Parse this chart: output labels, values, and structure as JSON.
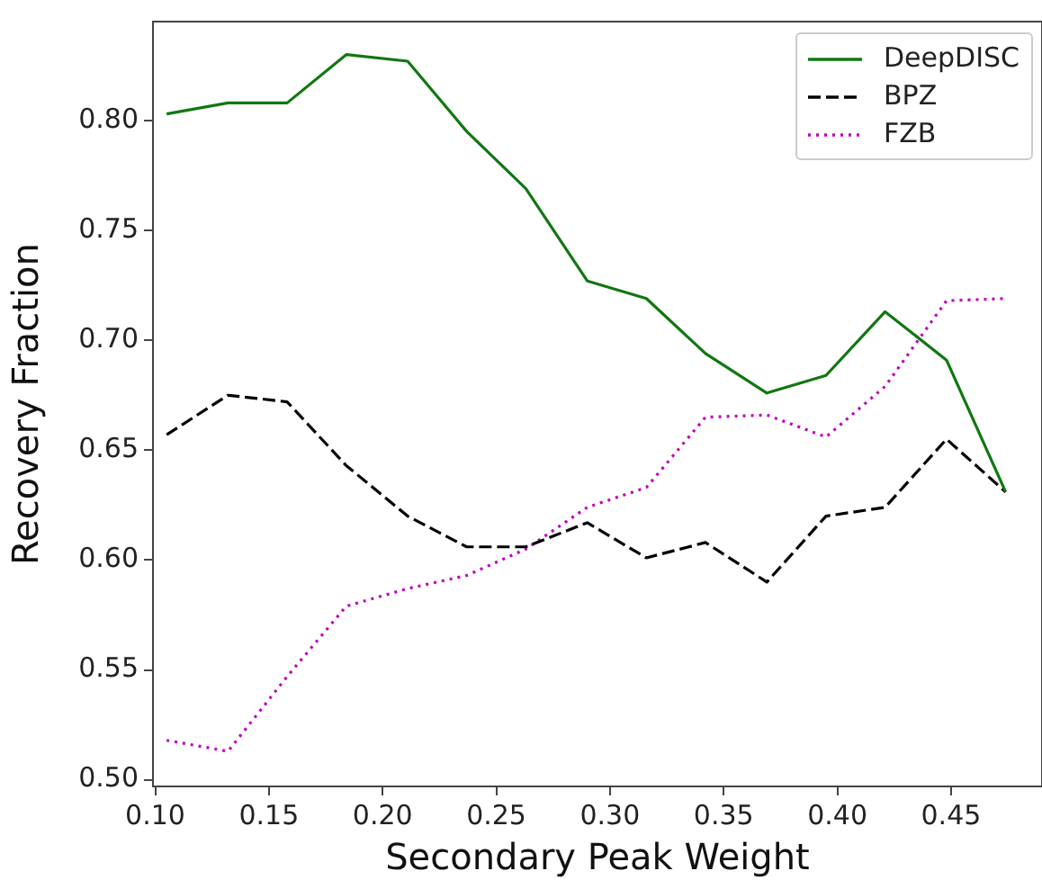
{
  "chart_data": {
    "type": "line",
    "xlabel": "Secondary Peak Weight",
    "ylabel": "Recovery Fraction",
    "x": [
      0.105,
      0.132,
      0.158,
      0.184,
      0.211,
      0.237,
      0.263,
      0.29,
      0.316,
      0.342,
      0.369,
      0.395,
      0.421,
      0.448,
      0.474
    ],
    "series": [
      {
        "name": "DeepDISC",
        "color": "#117711",
        "line_style": "solid",
        "values": [
          0.803,
          0.808,
          0.808,
          0.83,
          0.827,
          0.795,
          0.769,
          0.727,
          0.719,
          0.694,
          0.676,
          0.684,
          0.713,
          0.691,
          0.631
        ]
      },
      {
        "name": "BPZ",
        "color": "#000000",
        "line_style": "dashed",
        "values": [
          0.657,
          0.675,
          0.672,
          0.643,
          0.62,
          0.606,
          0.606,
          0.617,
          0.601,
          0.608,
          0.59,
          0.62,
          0.624,
          0.655,
          0.631
        ]
      },
      {
        "name": "FZB",
        "color": "#bf00bf",
        "line_style": "dotted",
        "values": [
          0.518,
          0.513,
          0.547,
          0.579,
          0.587,
          0.593,
          0.605,
          0.624,
          0.633,
          0.665,
          0.666,
          0.656,
          0.679,
          0.718,
          0.719
        ]
      }
    ],
    "xlim": [
      0.099,
      0.49
    ],
    "xticks": [
      {
        "value": 0.1,
        "label": "0.10"
      },
      0.15,
      {
        "value": 0.2,
        "label": "0.20"
      },
      0.25,
      {
        "value": 0.3,
        "label": "0.30"
      },
      0.35,
      {
        "value": 0.4,
        "label": "0.40"
      },
      0.45
    ],
    "ylim": [
      0.497,
      0.845
    ],
    "yticks": [
      {
        "value": 0.5,
        "label": "0.50"
      },
      0.55,
      {
        "value": 0.6,
        "label": "0.60"
      },
      0.65,
      {
        "value": 0.7,
        "label": "0.70"
      },
      0.75,
      {
        "value": 0.8,
        "label": "0.80"
      }
    ],
    "grid": false,
    "legend": "top right",
    "marker": "none"
  }
}
